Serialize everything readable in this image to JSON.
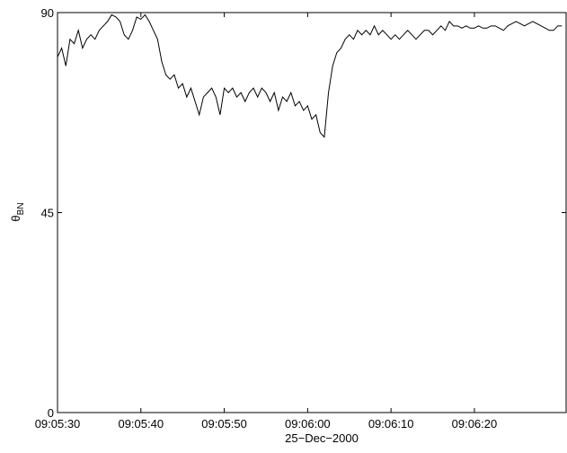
{
  "chart_data": {
    "type": "line",
    "xlabel": "25−Dec−2000",
    "ylabel": {
      "text": "θ",
      "subscript": "BN"
    },
    "xlim": [
      32730,
      32791
    ],
    "ylim": [
      0,
      90
    ],
    "yticks": [
      0,
      45,
      90
    ],
    "xticks": [
      {
        "value": 32730,
        "label": "09:05:30"
      },
      {
        "value": 32740,
        "label": "09:05:40"
      },
      {
        "value": 32750,
        "label": "09:05:50"
      },
      {
        "value": 32760,
        "label": "09:06:00"
      },
      {
        "value": 32770,
        "label": "09:06:10"
      },
      {
        "value": 32780,
        "label": "09:06:20"
      }
    ],
    "grid": false,
    "series": [
      {
        "color": "#000000",
        "x": [
          32730,
          32730.5,
          32731,
          32731.5,
          32732,
          32732.5,
          32733,
          32733.5,
          32734,
          32734.5,
          32735,
          32735.5,
          32736,
          32736.5,
          32737,
          32737.5,
          32738,
          32738.5,
          32739,
          32739.5,
          32740,
          32740.5,
          32741,
          32741.5,
          32742,
          32742.5,
          32743,
          32743.5,
          32744,
          32744.5,
          32745,
          32745.5,
          32746,
          32746.5,
          32747,
          32747.5,
          32748,
          32748.5,
          32749,
          32749.5,
          32750,
          32750.5,
          32751,
          32751.5,
          32752,
          32752.5,
          32753,
          32753.5,
          32754,
          32754.5,
          32755,
          32755.5,
          32756,
          32756.5,
          32757,
          32757.5,
          32758,
          32758.5,
          32759,
          32759.5,
          32760,
          32760.5,
          32761,
          32761.5,
          32762,
          32762.5,
          32763,
          32763.5,
          32764,
          32764.5,
          32765,
          32765.5,
          32766,
          32766.5,
          32767,
          32767.5,
          32768,
          32768.5,
          32769,
          32769.5,
          32770,
          32770.5,
          32771,
          32771.5,
          32772,
          32772.5,
          32773,
          32773.5,
          32774,
          32774.5,
          32775,
          32775.5,
          32776,
          32776.5,
          32777,
          32777.5,
          32778,
          32778.5,
          32779,
          32779.5,
          32780,
          32780.5,
          32781,
          32781.5,
          32782,
          32782.5,
          32783,
          32783.5,
          32784,
          32784.5,
          32785,
          32785.5,
          32786,
          32786.5,
          32787,
          32787.5,
          32788,
          32788.5,
          32789,
          32789.5,
          32790,
          32790.5
        ],
        "values": [
          80,
          82,
          78,
          84,
          83,
          86,
          82,
          84,
          85,
          84,
          86,
          87,
          88,
          89.5,
          89,
          88,
          85,
          84,
          86,
          89,
          88.5,
          89.5,
          88,
          86,
          84,
          79,
          76,
          75,
          76,
          73,
          74,
          71,
          73,
          70,
          67,
          71,
          72,
          73,
          71,
          67,
          73,
          72,
          73,
          71,
          72,
          70,
          72,
          73,
          71,
          73,
          72,
          70,
          72,
          68,
          71,
          70,
          72,
          69,
          70,
          68,
          69,
          66,
          67,
          63,
          62,
          72,
          78,
          81,
          82,
          84,
          85,
          84,
          86,
          85,
          86,
          85,
          87,
          85,
          86,
          85,
          84,
          85,
          84,
          85,
          86,
          85,
          84,
          85,
          86,
          86,
          85,
          86,
          87,
          86,
          88,
          87,
          87,
          86.5,
          87,
          86.5,
          86.5,
          87,
          86.5,
          86.5,
          87,
          87,
          86.5,
          86,
          87,
          87.5,
          88,
          87.5,
          87,
          87.5,
          88,
          87.5,
          87,
          86.5,
          86,
          86,
          87,
          87
        ]
      }
    ]
  }
}
